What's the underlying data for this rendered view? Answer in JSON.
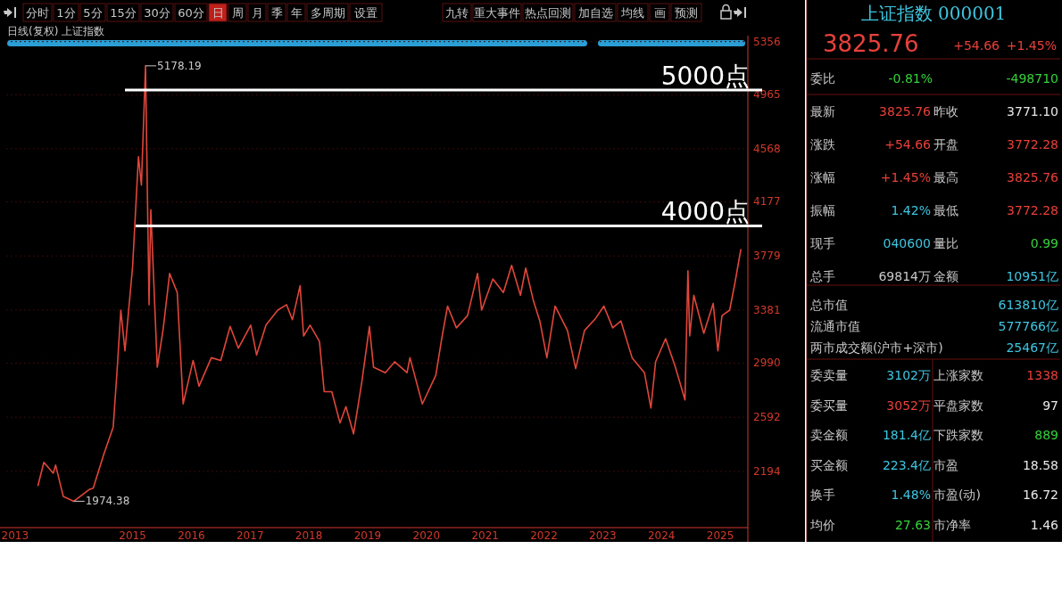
{
  "chart_data": [
    {
      "type": "line",
      "subtitle": "日线(复权) 上证指数",
      "x": [
        2013.39,
        2013.49,
        2013.65,
        2013.69,
        2013.82,
        2014.0,
        2014.26,
        2014.33,
        2014.51,
        2014.67,
        2014.74,
        2014.8,
        2014.87,
        2015.0,
        2015.1,
        2015.15,
        2015.22,
        2015.28,
        2015.31,
        2015.42,
        2015.52,
        2015.63,
        2015.76,
        2015.86,
        2016.03,
        2016.13,
        2016.34,
        2016.5,
        2016.66,
        2016.8,
        2017.01,
        2017.11,
        2017.27,
        2017.47,
        2017.62,
        2017.72,
        2017.85,
        2017.91,
        2018.02,
        2018.18,
        2018.26,
        2018.39,
        2018.53,
        2018.63,
        2018.76,
        2018.9,
        2019.03,
        2019.1,
        2019.3,
        2019.46,
        2019.67,
        2019.72,
        2019.93,
        2020.16,
        2020.26,
        2020.36,
        2020.51,
        2020.7,
        2020.87,
        2020.94,
        2021.13,
        2021.31,
        2021.45,
        2021.6,
        2021.69,
        2021.82,
        2021.93,
        2022.05,
        2022.19,
        2022.4,
        2022.54,
        2022.69,
        2022.88,
        2023.02,
        2023.17,
        2023.31,
        2023.5,
        2023.71,
        2023.82,
        2023.9,
        2024.07,
        2024.23,
        2024.4,
        2024.45,
        2024.48,
        2024.55,
        2024.72,
        2024.88,
        2024.96,
        2025.03,
        2025.16,
        2025.25,
        2025.35
      ],
      "series": [
        {
          "color": "#e0463a",
          "values": [
            2090,
            2260,
            2180,
            2240,
            2010,
            1974,
            2060,
            2070,
            2320,
            2520,
            2960,
            3380,
            3080,
            3700,
            4510,
            4300,
            5178,
            3420,
            4120,
            2960,
            3240,
            3650,
            3510,
            2690,
            3010,
            2820,
            3030,
            3010,
            3260,
            3100,
            3270,
            3050,
            3270,
            3380,
            3420,
            3310,
            3560,
            3190,
            3270,
            3150,
            2780,
            2780,
            2550,
            2670,
            2470,
            2850,
            3260,
            2960,
            2920,
            3000,
            2920,
            3030,
            2690,
            2900,
            3170,
            3410,
            3250,
            3340,
            3650,
            3380,
            3610,
            3510,
            3710,
            3490,
            3690,
            3450,
            3300,
            3030,
            3410,
            3230,
            2950,
            3230,
            3320,
            3410,
            3250,
            3300,
            3030,
            2920,
            2660,
            3000,
            3170,
            2970,
            2720,
            3670,
            3190,
            3490,
            3210,
            3430,
            3080,
            3340,
            3380,
            3580,
            3826
          ]
        }
      ],
      "xlim": [
        2012.85,
        2025.47
      ],
      "xticks": [
        2013,
        2015,
        2016,
        2017,
        2018,
        2019,
        2020,
        2021,
        2022,
        2023,
        2024,
        2025
      ],
      "ylim": [
        1780,
        5400
      ],
      "yticks": [
        5356,
        4965,
        4568,
        4177,
        3779,
        3381,
        2990,
        2592,
        2194
      ],
      "grid": "y",
      "ref_lines": [
        {
          "axis": "y",
          "value": 5000,
          "label": "5000点",
          "color": "#ffffff"
        },
        {
          "axis": "y",
          "value": 4000,
          "label": "4000点",
          "color": "#ffffff"
        }
      ],
      "annotations": [
        "分时",
        "1分",
        "5分",
        "15分",
        "30分",
        "60分",
        "日",
        "周",
        "月",
        "季",
        "年",
        "多周期",
        "设置",
        "九转",
        "重大事件",
        "热点回测",
        "加自选",
        "均线",
        "画",
        "预测",
        {
          "text": "5178.19",
          "x": 2015.22,
          "y": 5178
        },
        {
          "text": "1974.38",
          "x": 2014.0,
          "y": 1974
        }
      ]
    },
    {
      "type": "other",
      "title": "上证指数 000001",
      "annotations": [
        "3825.76",
        "+54.66",
        "+1.45%",
        "委比",
        "-0.81%",
        "-498710",
        "最新",
        "3825.76",
        "昨收",
        "3771.10",
        "涨跌",
        "+54.66",
        "开盘",
        "3772.28",
        "涨幅",
        "+1.45%",
        "最高",
        "3825.76",
        "振幅",
        "1.42%",
        "最低",
        "3772.28",
        "现手",
        "040600",
        "量比",
        "0.99",
        "总手",
        "69814万",
        "金额",
        "10951亿",
        "总市值",
        "613810亿",
        "流通市值",
        "577766亿",
        "两市成交额(沪市+深市)",
        "25467亿",
        "委卖量",
        "3102万",
        "上涨家数",
        "1338",
        "委买量",
        "3052万",
        "平盘家数",
        "97",
        "卖金额",
        "181.4亿",
        "下跌家数",
        "889",
        "买金额",
        "223.4亿",
        "市盈",
        "18.58",
        "换手",
        "1.48%",
        "市盈(动)",
        "16.72",
        "均价",
        "27.63",
        "市净率",
        "1.46"
      ]
    }
  ]
}
